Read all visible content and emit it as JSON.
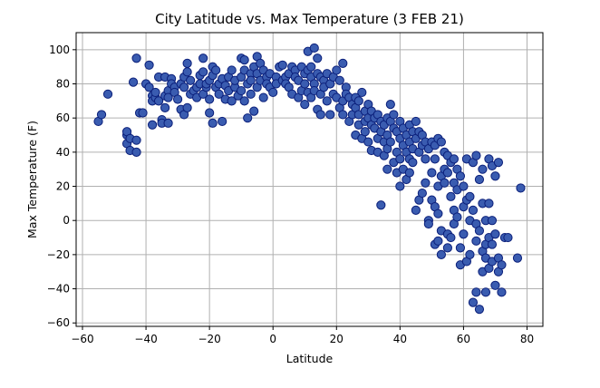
{
  "chart_data": {
    "type": "scatter",
    "title": "City Latitude vs. Max Temperature (3 FEB 21)",
    "xlabel": "Latitude",
    "ylabel": "Max Temperature (F)",
    "xlim": [
      -62,
      85
    ],
    "ylim": [
      -62,
      110
    ],
    "xticks": [
      -60,
      -40,
      -20,
      0,
      20,
      40,
      60,
      80
    ],
    "yticks": [
      -60,
      -40,
      -20,
      0,
      20,
      40,
      60,
      80,
      100
    ],
    "grid": true,
    "marker_fill": "#3a5cb0",
    "marker_edge": "#0b1f7a",
    "points": [
      [
        -55,
        58
      ],
      [
        -54,
        62
      ],
      [
        -52,
        74
      ],
      [
        -46,
        45
      ],
      [
        -46,
        50
      ],
      [
        -46,
        52
      ],
      [
        -45,
        41
      ],
      [
        -45,
        48
      ],
      [
        -44,
        81
      ],
      [
        -43,
        40
      ],
      [
        -43,
        47
      ],
      [
        -43,
        95
      ],
      [
        -42,
        63
      ],
      [
        -41,
        63
      ],
      [
        -40,
        80
      ],
      [
        -39,
        91
      ],
      [
        -39,
        78
      ],
      [
        -38,
        73
      ],
      [
        -38,
        70
      ],
      [
        -38,
        56
      ],
      [
        -37,
        72
      ],
      [
        -37,
        75
      ],
      [
        -36,
        84
      ],
      [
        -36,
        70
      ],
      [
        -35,
        59
      ],
      [
        -35,
        57
      ],
      [
        -34,
        84
      ],
      [
        -34,
        73
      ],
      [
        -34,
        66
      ],
      [
        -33,
        57
      ],
      [
        -33,
        76
      ],
      [
        -33,
        72
      ],
      [
        -32,
        83
      ],
      [
        -32,
        80
      ],
      [
        -31,
        78
      ],
      [
        -31,
        75
      ],
      [
        -30,
        71
      ],
      [
        -29,
        65
      ],
      [
        -29,
        80
      ],
      [
        -28,
        62
      ],
      [
        -28,
        84
      ],
      [
        -28,
        78
      ],
      [
        -27,
        66
      ],
      [
        -27,
        87
      ],
      [
        -27,
        92
      ],
      [
        -26,
        82
      ],
      [
        -26,
        74
      ],
      [
        -25,
        76
      ],
      [
        -24,
        78
      ],
      [
        -24,
        72
      ],
      [
        -23,
        85
      ],
      [
        -23,
        80
      ],
      [
        -22,
        87
      ],
      [
        -22,
        74
      ],
      [
        -22,
        95
      ],
      [
        -21,
        78
      ],
      [
        -21,
        80
      ],
      [
        -20,
        82
      ],
      [
        -20,
        71
      ],
      [
        -20,
        63
      ],
      [
        -19,
        90
      ],
      [
        -19,
        85
      ],
      [
        -19,
        57
      ],
      [
        -18,
        78
      ],
      [
        -18,
        88
      ],
      [
        -17,
        80
      ],
      [
        -17,
        74
      ],
      [
        -16,
        83
      ],
      [
        -16,
        58
      ],
      [
        -15,
        79
      ],
      [
        -15,
        71
      ],
      [
        -14,
        76
      ],
      [
        -14,
        84
      ],
      [
        -13,
        70
      ],
      [
        -13,
        88
      ],
      [
        -12,
        78
      ],
      [
        -12,
        82
      ],
      [
        -11,
        73
      ],
      [
        -10,
        95
      ],
      [
        -10,
        84
      ],
      [
        -10,
        76
      ],
      [
        -9,
        94
      ],
      [
        -9,
        88
      ],
      [
        -9,
        70
      ],
      [
        -8,
        60
      ],
      [
        -8,
        80
      ],
      [
        -7,
        86
      ],
      [
        -7,
        82
      ],
      [
        -7,
        74
      ],
      [
        -6,
        90
      ],
      [
        -6,
        64
      ],
      [
        -5,
        78
      ],
      [
        -5,
        96
      ],
      [
        -5,
        86
      ],
      [
        -4,
        92
      ],
      [
        -4,
        82
      ],
      [
        -3,
        88
      ],
      [
        -3,
        72
      ],
      [
        -2,
        84
      ],
      [
        -2,
        80
      ],
      [
        -1,
        86
      ],
      [
        -1,
        78
      ],
      [
        0,
        75
      ],
      [
        1,
        84
      ],
      [
        1,
        80
      ],
      [
        2,
        90
      ],
      [
        3,
        91
      ],
      [
        3,
        82
      ],
      [
        4,
        84
      ],
      [
        4,
        80
      ],
      [
        5,
        86
      ],
      [
        5,
        78
      ],
      [
        6,
        90
      ],
      [
        6,
        74
      ],
      [
        7,
        88
      ],
      [
        7,
        84
      ],
      [
        8,
        72
      ],
      [
        8,
        82
      ],
      [
        9,
        90
      ],
      [
        9,
        76
      ],
      [
        10,
        86
      ],
      [
        10,
        68
      ],
      [
        10,
        80
      ],
      [
        11,
        99
      ],
      [
        11,
        88
      ],
      [
        11,
        75
      ],
      [
        12,
        84
      ],
      [
        12,
        72
      ],
      [
        12,
        90
      ],
      [
        13,
        101
      ],
      [
        13,
        80
      ],
      [
        13,
        76
      ],
      [
        14,
        95
      ],
      [
        14,
        86
      ],
      [
        14,
        65
      ],
      [
        15,
        84
      ],
      [
        15,
        74
      ],
      [
        15,
        62
      ],
      [
        16,
        82
      ],
      [
        16,
        78
      ],
      [
        17,
        86
      ],
      [
        17,
        70
      ],
      [
        18,
        80
      ],
      [
        18,
        62
      ],
      [
        19,
        84
      ],
      [
        19,
        74
      ],
      [
        20,
        72
      ],
      [
        20,
        88
      ],
      [
        21,
        82
      ],
      [
        21,
        66
      ],
      [
        22,
        92
      ],
      [
        22,
        70
      ],
      [
        22,
        62
      ],
      [
        23,
        78
      ],
      [
        23,
        74
      ],
      [
        24,
        72
      ],
      [
        24,
        58
      ],
      [
        25,
        62
      ],
      [
        25,
        68
      ],
      [
        26,
        72
      ],
      [
        26,
        66
      ],
      [
        26,
        50
      ],
      [
        27,
        70
      ],
      [
        27,
        62
      ],
      [
        27,
        56
      ],
      [
        28,
        75
      ],
      [
        28,
        48
      ],
      [
        29,
        64
      ],
      [
        29,
        58
      ],
      [
        29,
        52
      ],
      [
        30,
        68
      ],
      [
        30,
        60
      ],
      [
        30,
        46
      ],
      [
        31,
        64
      ],
      [
        31,
        56
      ],
      [
        31,
        41
      ],
      [
        32,
        60
      ],
      [
        32,
        54
      ],
      [
        33,
        62
      ],
      [
        33,
        48
      ],
      [
        33,
        40
      ],
      [
        34,
        58
      ],
      [
        34,
        52
      ],
      [
        34,
        9
      ],
      [
        35,
        56
      ],
      [
        35,
        46
      ],
      [
        35,
        38
      ],
      [
        36,
        60
      ],
      [
        36,
        50
      ],
      [
        36,
        42
      ],
      [
        36,
        30
      ],
      [
        37,
        68
      ],
      [
        37,
        58
      ],
      [
        37,
        46
      ],
      [
        38,
        62
      ],
      [
        38,
        54
      ],
      [
        38,
        34
      ],
      [
        39,
        52
      ],
      [
        39,
        40
      ],
      [
        39,
        28
      ],
      [
        40,
        58
      ],
      [
        40,
        48
      ],
      [
        40,
        36
      ],
      [
        40,
        20
      ],
      [
        41,
        54
      ],
      [
        41,
        44
      ],
      [
        41,
        30
      ],
      [
        42,
        50
      ],
      [
        42,
        40
      ],
      [
        42,
        24
      ],
      [
        43,
        56
      ],
      [
        43,
        46
      ],
      [
        43,
        36
      ],
      [
        43,
        28
      ],
      [
        44,
        52
      ],
      [
        44,
        42
      ],
      [
        44,
        34
      ],
      [
        45,
        58
      ],
      [
        45,
        48
      ],
      [
        45,
        6
      ],
      [
        46,
        52
      ],
      [
        46,
        40
      ],
      [
        46,
        12
      ],
      [
        47,
        50
      ],
      [
        47,
        44
      ],
      [
        47,
        16
      ],
      [
        48,
        46
      ],
      [
        48,
        36
      ],
      [
        48,
        22
      ],
      [
        49,
        42
      ],
      [
        49,
        0
      ],
      [
        49,
        -2
      ],
      [
        50,
        46
      ],
      [
        50,
        28
      ],
      [
        50,
        12
      ],
      [
        51,
        44
      ],
      [
        51,
        36
      ],
      [
        51,
        8
      ],
      [
        51,
        -14
      ],
      [
        52,
        48
      ],
      [
        52,
        20
      ],
      [
        52,
        4
      ],
      [
        52,
        -12
      ],
      [
        53,
        46
      ],
      [
        53,
        26
      ],
      [
        53,
        -6
      ],
      [
        53,
        -20
      ],
      [
        54,
        40
      ],
      [
        54,
        30
      ],
      [
        54,
        22
      ],
      [
        55,
        38
      ],
      [
        55,
        28
      ],
      [
        55,
        -8
      ],
      [
        55,
        -16
      ],
      [
        56,
        34
      ],
      [
        56,
        14
      ],
      [
        56,
        -10
      ],
      [
        57,
        36
      ],
      [
        57,
        22
      ],
      [
        57,
        6
      ],
      [
        57,
        -2
      ],
      [
        58,
        30
      ],
      [
        58,
        18
      ],
      [
        58,
        2
      ],
      [
        59,
        26
      ],
      [
        59,
        -16
      ],
      [
        59,
        -26
      ],
      [
        60,
        20
      ],
      [
        60,
        8
      ],
      [
        60,
        -8
      ],
      [
        61,
        36
      ],
      [
        61,
        12
      ],
      [
        61,
        -24
      ],
      [
        62,
        14
      ],
      [
        62,
        0
      ],
      [
        62,
        -20
      ],
      [
        63,
        34
      ],
      [
        63,
        6
      ],
      [
        63,
        -48
      ],
      [
        64,
        38
      ],
      [
        64,
        -2
      ],
      [
        64,
        -12
      ],
      [
        64,
        -42
      ],
      [
        65,
        24
      ],
      [
        65,
        -6
      ],
      [
        65,
        -52
      ],
      [
        66,
        30
      ],
      [
        66,
        10
      ],
      [
        66,
        -18
      ],
      [
        66,
        -30
      ],
      [
        67,
        0
      ],
      [
        67,
        -14
      ],
      [
        67,
        -22
      ],
      [
        67,
        -42
      ],
      [
        68,
        36
      ],
      [
        68,
        10
      ],
      [
        68,
        -10
      ],
      [
        68,
        -28
      ],
      [
        69,
        32
      ],
      [
        69,
        0
      ],
      [
        69,
        -14
      ],
      [
        69,
        -24
      ],
      [
        70,
        26
      ],
      [
        70,
        -8
      ],
      [
        70,
        -38
      ],
      [
        71,
        34
      ],
      [
        71,
        -22
      ],
      [
        71,
        -30
      ],
      [
        72,
        -26
      ],
      [
        72,
        -42
      ],
      [
        73,
        -10
      ],
      [
        74,
        -10
      ],
      [
        77,
        -22
      ],
      [
        78,
        19
      ]
    ]
  }
}
